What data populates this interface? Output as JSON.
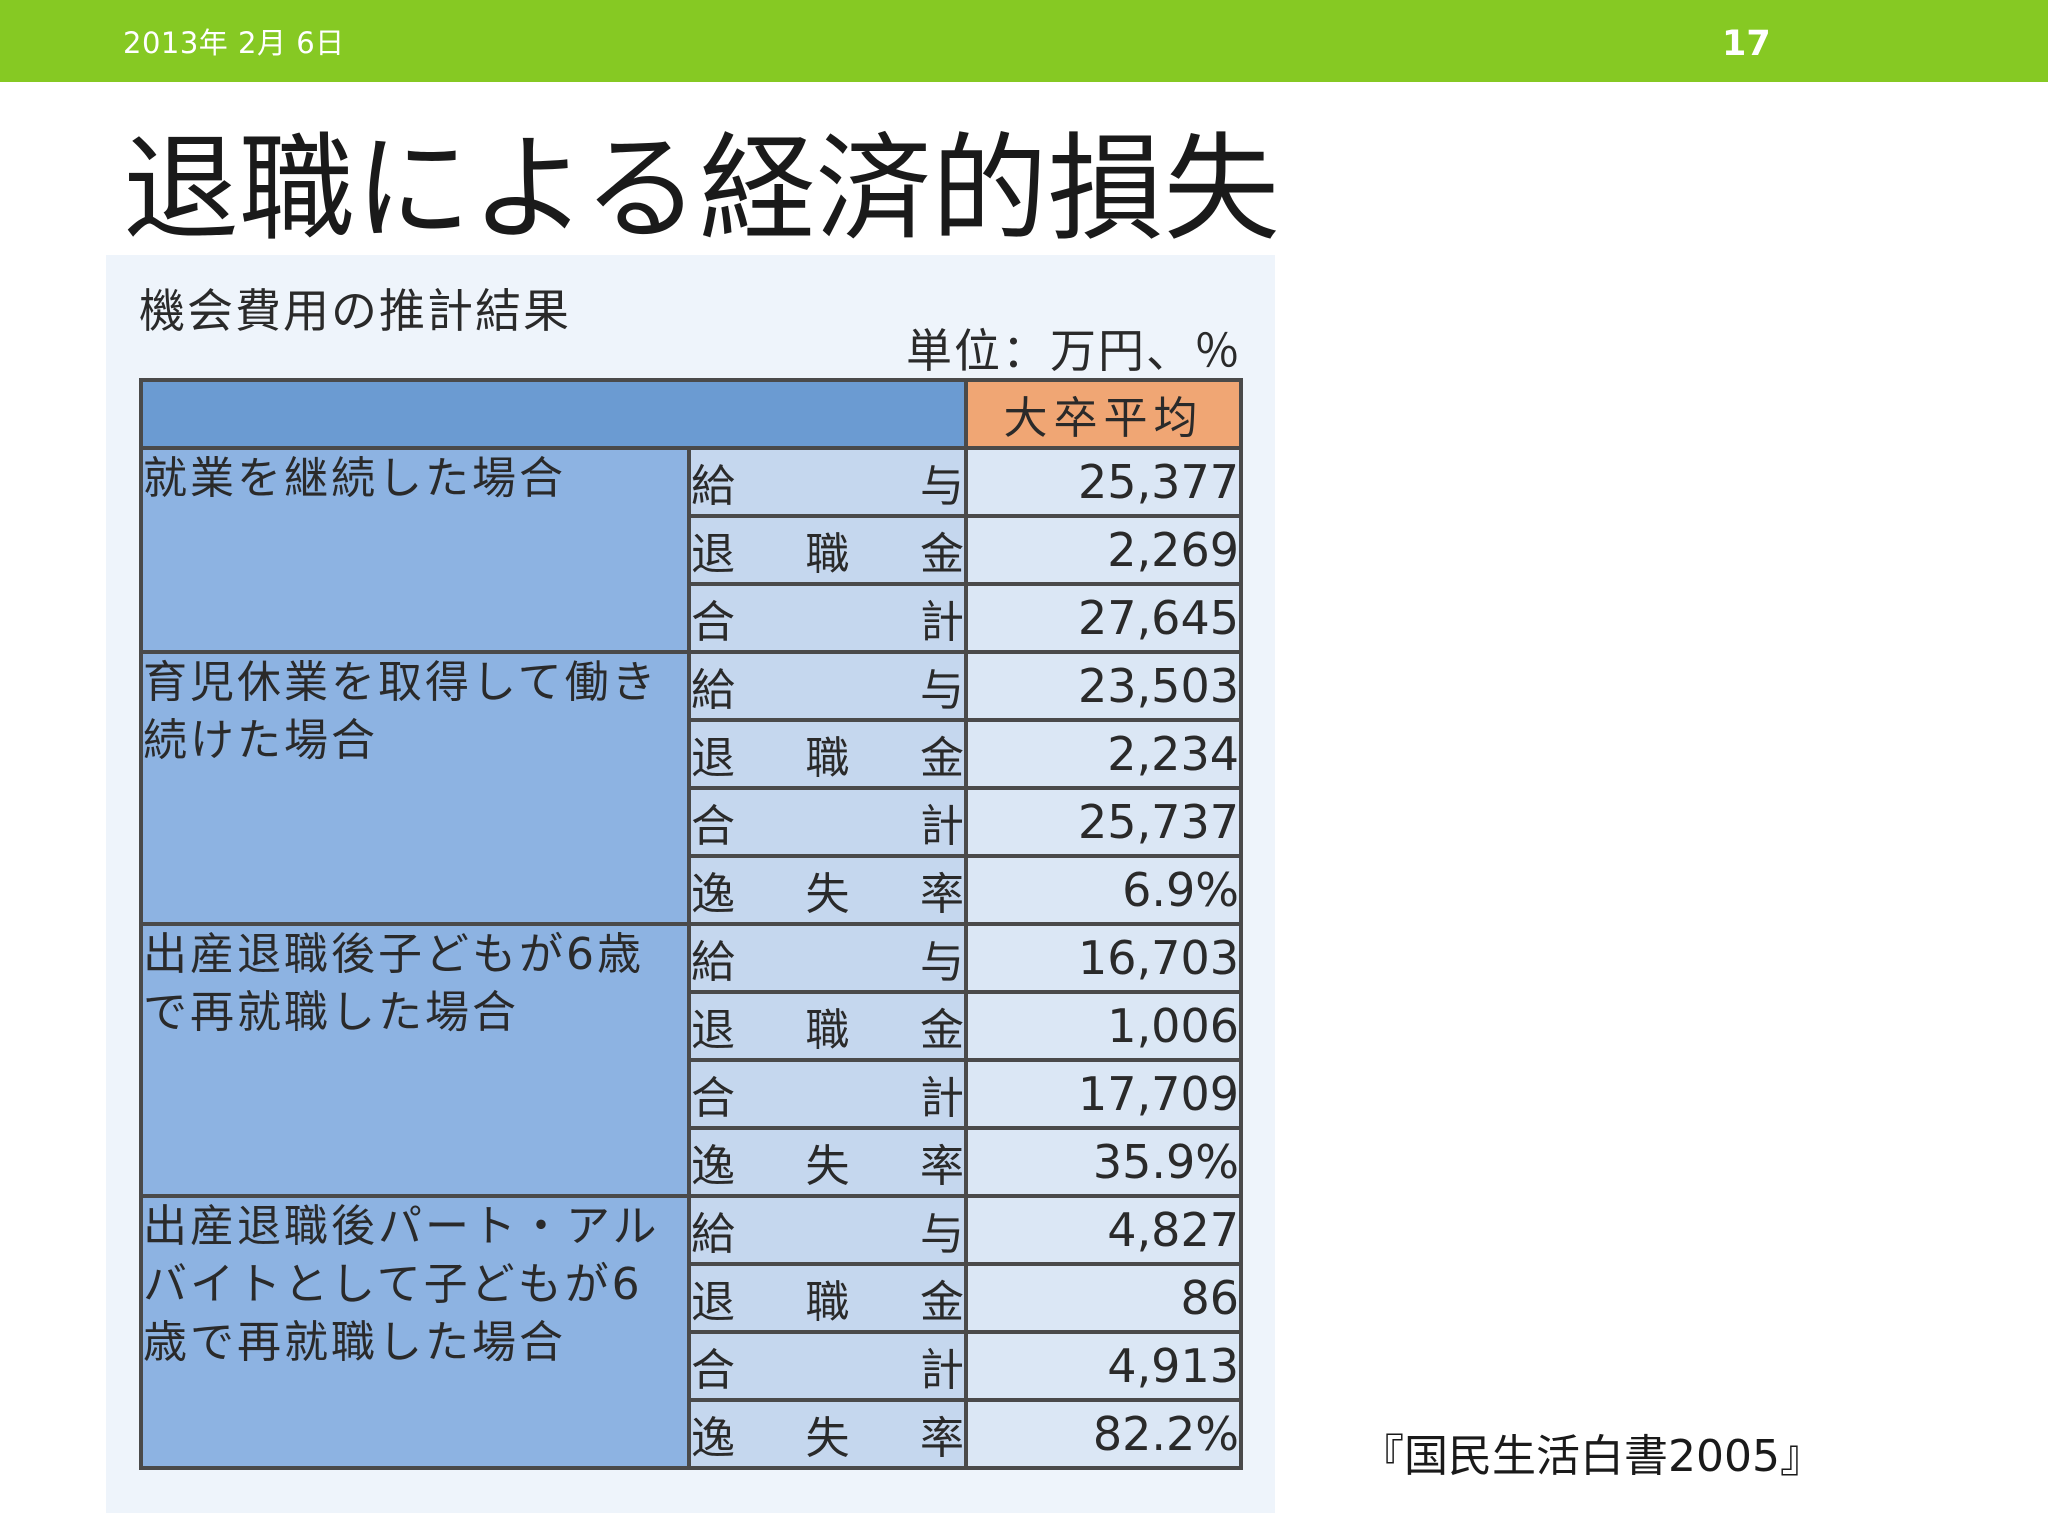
{
  "header": {
    "date": "2013年 2月 6日",
    "page_number": "17"
  },
  "slide": {
    "title": "退職による経済的損失",
    "source": "『国民生活白書2005』"
  },
  "figure": {
    "title": "機会費用の推計結果",
    "unit": "単位：万円、％",
    "column_header": "大卒平均",
    "groups": [
      {
        "category": "就業を継続した場合",
        "rows": [
          {
            "item": [
              "給",
              "与"
            ],
            "value": "25,377"
          },
          {
            "item": [
              "退",
              "職",
              "金"
            ],
            "value": "2,269"
          },
          {
            "item": [
              "合",
              "計"
            ],
            "value": "27,645"
          }
        ]
      },
      {
        "category": "育児休業を取得して働き続けた場合",
        "rows": [
          {
            "item": [
              "給",
              "与"
            ],
            "value": "23,503"
          },
          {
            "item": [
              "退",
              "職",
              "金"
            ],
            "value": "2,234"
          },
          {
            "item": [
              "合",
              "計"
            ],
            "value": "25,737"
          },
          {
            "item": [
              "逸",
              "失",
              "率"
            ],
            "value": "6.9%"
          }
        ]
      },
      {
        "category": "出産退職後子どもが6歳で再就職した場合",
        "rows": [
          {
            "item": [
              "給",
              "与"
            ],
            "value": "16,703"
          },
          {
            "item": [
              "退",
              "職",
              "金"
            ],
            "value": "1,006"
          },
          {
            "item": [
              "合",
              "計"
            ],
            "value": "17,709"
          },
          {
            "item": [
              "逸",
              "失",
              "率"
            ],
            "value": "35.9%"
          }
        ]
      },
      {
        "category": "出産退職後パート・アルバイトとして子どもが6歳で再就職した場合",
        "rows": [
          {
            "item": [
              "給",
              "与"
            ],
            "value": "4,827"
          },
          {
            "item": [
              "退",
              "職",
              "金"
            ],
            "value": "86"
          },
          {
            "item": [
              "合",
              "計"
            ],
            "value": "4,913"
          },
          {
            "item": [
              "逸",
              "失",
              "率"
            ],
            "value": "82.2%"
          }
        ]
      }
    ],
    "colors": {
      "category_bg": "#8db3e2",
      "item_bg": "#c5d7ee",
      "value_bg": "#dbe7f5",
      "column_header_bg": "#f0a674",
      "header_bar": "#86c923"
    }
  }
}
